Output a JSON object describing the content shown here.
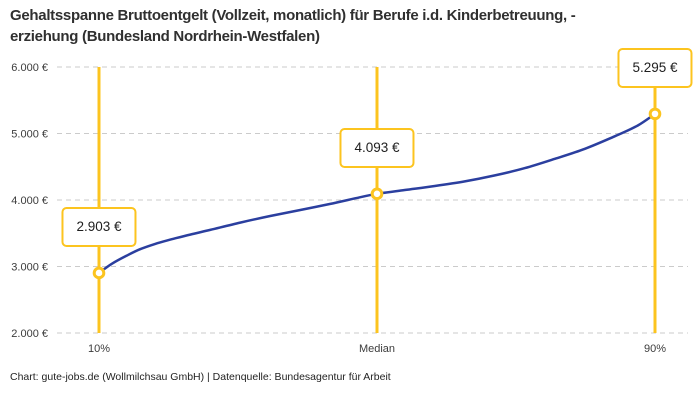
{
  "title": {
    "line1": "Gehaltsspanne Bruttoentgelt (Vollzeit, monatlich) für Berufe i.d. Kinderbetreuung, -",
    "line2": "erziehung (Bundesland Nordrhein-Westfalen)"
  },
  "footer": {
    "text": "Chart: gute-jobs.de (Wollmilchsau GmbH) | Datenquelle: Bundesagentur für Arbeit"
  },
  "colors": {
    "accent_yellow": "#FCC41F",
    "curve_blue": "#2B3F9F",
    "grid_gray": "#CBCBCB",
    "tick_text": "#3C3C3C"
  },
  "chart_data": {
    "type": "line",
    "title": "Gehaltsspanne Bruttoentgelt (Vollzeit, monatlich) für Berufe i.d. Kinderbetreuung, -erziehung (Bundesland Nordrhein-Westfalen)",
    "categories": [
      "10%",
      "Median",
      "90%"
    ],
    "values": [
      2903,
      4093,
      5295
    ],
    "point_labels": [
      "2.903 €",
      "4.093 €",
      "5.295 €"
    ],
    "ylim": [
      2000,
      6000
    ],
    "yticks": [
      {
        "value": 2000,
        "label": "2.000 €"
      },
      {
        "value": 3000,
        "label": "3.000 €"
      },
      {
        "value": 4000,
        "label": "4.000 €"
      },
      {
        "value": 5000,
        "label": "5.000 €"
      },
      {
        "value": 6000,
        "label": "6.000 €"
      }
    ],
    "grid": "horizontal-dashed",
    "legend": "none",
    "curve_samples": [
      [
        0.0,
        2903
      ],
      [
        0.023,
        3040
      ],
      [
        0.049,
        3160
      ],
      [
        0.074,
        3260
      ],
      [
        0.101,
        3340
      ],
      [
        0.131,
        3410
      ],
      [
        0.164,
        3480
      ],
      [
        0.2,
        3550
      ],
      [
        0.254,
        3660
      ],
      [
        0.308,
        3760
      ],
      [
        0.362,
        3850
      ],
      [
        0.415,
        3940
      ],
      [
        0.469,
        4040
      ],
      [
        0.5,
        4093
      ],
      [
        0.55,
        4150
      ],
      [
        0.604,
        4210
      ],
      [
        0.658,
        4280
      ],
      [
        0.712,
        4370
      ],
      [
        0.766,
        4480
      ],
      [
        0.82,
        4620
      ],
      [
        0.874,
        4770
      ],
      [
        0.928,
        4960
      ],
      [
        0.969,
        5120
      ],
      [
        1.0,
        5295
      ]
    ]
  }
}
